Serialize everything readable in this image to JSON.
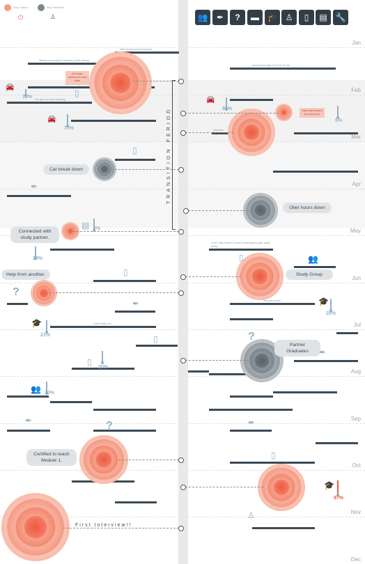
{
  "legend": {
    "positive": "Stay Positive",
    "distracted": "Stay Distracted",
    "positive_color": "#ee5a40",
    "distracted_color": "#58636b"
  },
  "toolbar": [
    {
      "name": "group-icon",
      "glyph": "👥"
    },
    {
      "name": "syringe-icon",
      "glyph": "✒"
    },
    {
      "name": "question-icon",
      "glyph": "?"
    },
    {
      "name": "car-icon",
      "glyph": "🚗"
    },
    {
      "name": "graduate-icon",
      "glyph": "🎓"
    },
    {
      "name": "teacher-icon",
      "glyph": "👤"
    },
    {
      "name": "phone-icon",
      "glyph": "▯"
    },
    {
      "name": "book-icon",
      "glyph": "📖"
    },
    {
      "name": "wrench-icon",
      "glyph": "🔧"
    }
  ],
  "months": [
    "Jan",
    "Feb",
    "Mar",
    "Apr",
    "May",
    "Jun",
    "Jul",
    "Aug",
    "Sep",
    "Oct",
    "Nov",
    "Dec"
  ],
  "transition_label": "TRANSITION PERIOD",
  "events": {
    "car_breakdown": "Car break down",
    "uber_hours": "Uber hours down",
    "study_partner": "Connected with study partner.",
    "help": "Help from another.",
    "study_group": "Study Group",
    "partner_graduates": "Partner Graduates",
    "certified": "Certified to teach Module 1.",
    "first_interview": "First Interview!!"
  },
  "tags": {
    "no_longer_driving": "No longer working as a taxi driver",
    "start_night": "Start night classes for commerce"
  },
  "percentages": {
    "car_left_1": "10%",
    "car_left_2": "75%",
    "car_right": "90%",
    "right_feb": "5%",
    "book": "0%",
    "left_may": "20%",
    "right_jun": "25%",
    "left_jul": "21%",
    "phone_aug": "30%",
    "group_aug": "10%",
    "final": "97%"
  },
  "bar_labels": [
    "Uber driving hours increasing",
    "Weekly hours begin to decrease (Uber driving)",
    "Hours down again from 8 to 10 hrs",
    "Start working for a while",
    "Car does not need repairing",
    "Semester",
    "Semester Exam",
    "Called Stats, etc",
    "A CET Test Partner to move to teaching for goal, study buddy"
  ]
}
